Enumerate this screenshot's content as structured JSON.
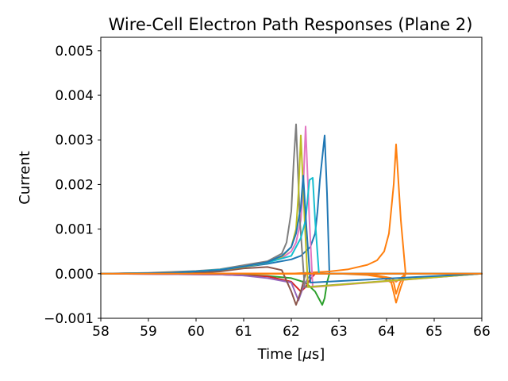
{
  "chart_data": {
    "type": "line",
    "title": "Wire-Cell Electron Path Responses (Plane 2)",
    "xlabel": "Time [",
    "xlabel_unit_symbol": "μ",
    "xlabel_unit_suffix": "s]",
    "ylabel": "Current",
    "xlim": [
      58,
      66
    ],
    "ylim": [
      -0.001,
      0.0053
    ],
    "grid": false,
    "legend": "none",
    "x_ticks": [
      58,
      59,
      60,
      61,
      62,
      63,
      64,
      65,
      66
    ],
    "x_tick_labels": [
      "58",
      "59",
      "60",
      "61",
      "62",
      "63",
      "64",
      "65",
      "66"
    ],
    "y_ticks": [
      -0.001,
      0.0,
      0.001,
      0.002,
      0.003,
      0.004,
      0.005
    ],
    "y_tick_labels": [
      "−0.001",
      "0.000",
      "0.001",
      "0.002",
      "0.003",
      "0.004",
      "0.005"
    ],
    "series": [
      {
        "color": "#1f77b4",
        "x": [
          58,
          59.5,
          60.5,
          61.0,
          61.5,
          62.0,
          62.2,
          62.4,
          62.5,
          62.55,
          62.6,
          62.7,
          62.75,
          62.8,
          63.0,
          66
        ],
        "y": [
          0,
          2e-05,
          8e-05,
          0.00015,
          0.00022,
          0.00032,
          0.0004,
          0.0006,
          0.0009,
          0.0014,
          0.0021,
          0.0031,
          0.0018,
          0.0,
          0.0,
          0
        ]
      },
      {
        "color": "#ff7f0e",
        "x": [
          58,
          62.0,
          62.8,
          63.2,
          63.6,
          63.8,
          63.95,
          64.05,
          64.15,
          64.2,
          64.3,
          64.4,
          64.45,
          66
        ],
        "y": [
          0,
          0.0,
          5e-05,
          0.0001,
          0.0002,
          0.0003,
          0.0005,
          0.0009,
          0.002,
          0.0029,
          0.0012,
          0.0,
          0.0,
          0
        ]
      },
      {
        "color": "#ff7f0e",
        "x": [
          58,
          63.0,
          63.6,
          63.9,
          64.1,
          64.2,
          64.3,
          64.4,
          66
        ],
        "y": [
          0,
          0.0,
          -3e-05,
          -8e-05,
          -0.0002,
          -0.00065,
          -0.0003,
          0.0,
          0
        ]
      },
      {
        "color": "#ff7f0e",
        "x": [
          58,
          63.5,
          64.0,
          64.15,
          64.2,
          64.28,
          64.4,
          66
        ],
        "y": [
          0,
          0.0,
          -8e-05,
          -0.0002,
          -0.00045,
          -0.0002,
          0.0,
          0
        ]
      },
      {
        "color": "#ff7f0e",
        "x": [
          58,
          63.6,
          64.1,
          64.2,
          64.3,
          64.4,
          66
        ],
        "y": [
          0,
          0.0,
          -0.0001,
          -0.00018,
          -0.0001,
          0.0,
          0
        ]
      },
      {
        "color": "#2ca02c",
        "x": [
          58,
          60.5,
          61.5,
          62.0,
          62.3,
          62.5,
          62.6,
          62.65,
          62.7,
          62.75,
          62.8,
          66
        ],
        "y": [
          0,
          -1e-05,
          -5e-05,
          -0.0001,
          -0.0002,
          -0.0004,
          -0.0006,
          -0.0007,
          -0.00055,
          -0.0002,
          0.0,
          0
        ]
      },
      {
        "color": "#d62728",
        "x": [
          58,
          60.5,
          61.5,
          62.0,
          62.2,
          62.3,
          62.4,
          62.5,
          66
        ],
        "y": [
          0,
          -2e-05,
          -6e-05,
          -0.00018,
          -0.0004,
          -0.0003,
          -0.00012,
          0.0,
          0
        ]
      },
      {
        "color": "#9467bd",
        "x": [
          58,
          60.5,
          61.0,
          61.5,
          62.0,
          62.15,
          62.25,
          62.35,
          62.45,
          66
        ],
        "y": [
          0,
          -2e-05,
          -4e-05,
          -0.0001,
          -0.0002,
          -0.0006,
          -0.0003,
          -0.0001,
          0.0,
          0
        ]
      },
      {
        "color": "#8c564b",
        "x": [
          58,
          59.8,
          60.5,
          61.0,
          61.5,
          61.8,
          62.0,
          62.1,
          62.2,
          62.3,
          66
        ],
        "y": [
          0,
          1e-05,
          5e-05,
          0.00012,
          0.00015,
          8e-05,
          -0.0004,
          -0.0007,
          -0.0004,
          0.0,
          0
        ]
      },
      {
        "color": "#e377c2",
        "x": [
          58,
          59.5,
          60.5,
          61.0,
          61.5,
          61.8,
          62.0,
          62.1,
          62.2,
          62.25,
          62.3,
          62.38,
          62.45,
          66
        ],
        "y": [
          0,
          2e-05,
          9e-05,
          0.00016,
          0.00025,
          0.00035,
          0.0005,
          0.0007,
          0.0012,
          0.0019,
          0.0033,
          0.0012,
          -0.0003,
          0
        ]
      },
      {
        "color": "#7f7f7f",
        "x": [
          58,
          59.0,
          60.0,
          60.5,
          61.0,
          61.5,
          61.8,
          61.9,
          62.0,
          62.05,
          62.1,
          62.18,
          62.28,
          66
        ],
        "y": [
          0,
          2e-05,
          6e-05,
          0.0001,
          0.00019,
          0.00028,
          0.00045,
          0.0007,
          0.0014,
          0.0025,
          0.00335,
          0.0012,
          -0.0003,
          0
        ]
      },
      {
        "color": "#bcbd22",
        "x": [
          58,
          59.5,
          60.5,
          61.0,
          61.5,
          61.8,
          62.0,
          62.1,
          62.15,
          62.2,
          62.28,
          62.35,
          66
        ],
        "y": [
          0,
          2e-05,
          8e-05,
          0.00015,
          0.00025,
          0.00038,
          0.0006,
          0.001,
          0.0018,
          0.0031,
          0.0012,
          -0.0003,
          0
        ]
      },
      {
        "color": "#17becf",
        "x": [
          58,
          59.5,
          60.5,
          61.0,
          61.5,
          62.0,
          62.2,
          62.3,
          62.38,
          62.45,
          62.5,
          62.58,
          66
        ],
        "y": [
          0,
          2e-05,
          9e-05,
          0.00016,
          0.00025,
          0.0004,
          0.0008,
          0.0012,
          0.0021,
          0.00215,
          0.0012,
          0.0,
          0
        ]
      },
      {
        "color": "#1f77b4",
        "x": [
          58,
          59.5,
          60.5,
          61.0,
          61.5,
          61.8,
          62.0,
          62.1,
          62.2,
          62.25,
          62.32,
          62.4,
          66
        ],
        "y": [
          0,
          2e-05,
          8e-05,
          0.00016,
          0.00026,
          0.0004,
          0.0006,
          0.0009,
          0.0015,
          0.0022,
          0.001,
          -0.0002,
          0
        ]
      },
      {
        "color": "#ff7f0e",
        "x": [
          58,
          62.5,
          62.9,
          66
        ],
        "y": [
          0,
          0.0,
          0.0,
          0
        ]
      }
    ]
  }
}
